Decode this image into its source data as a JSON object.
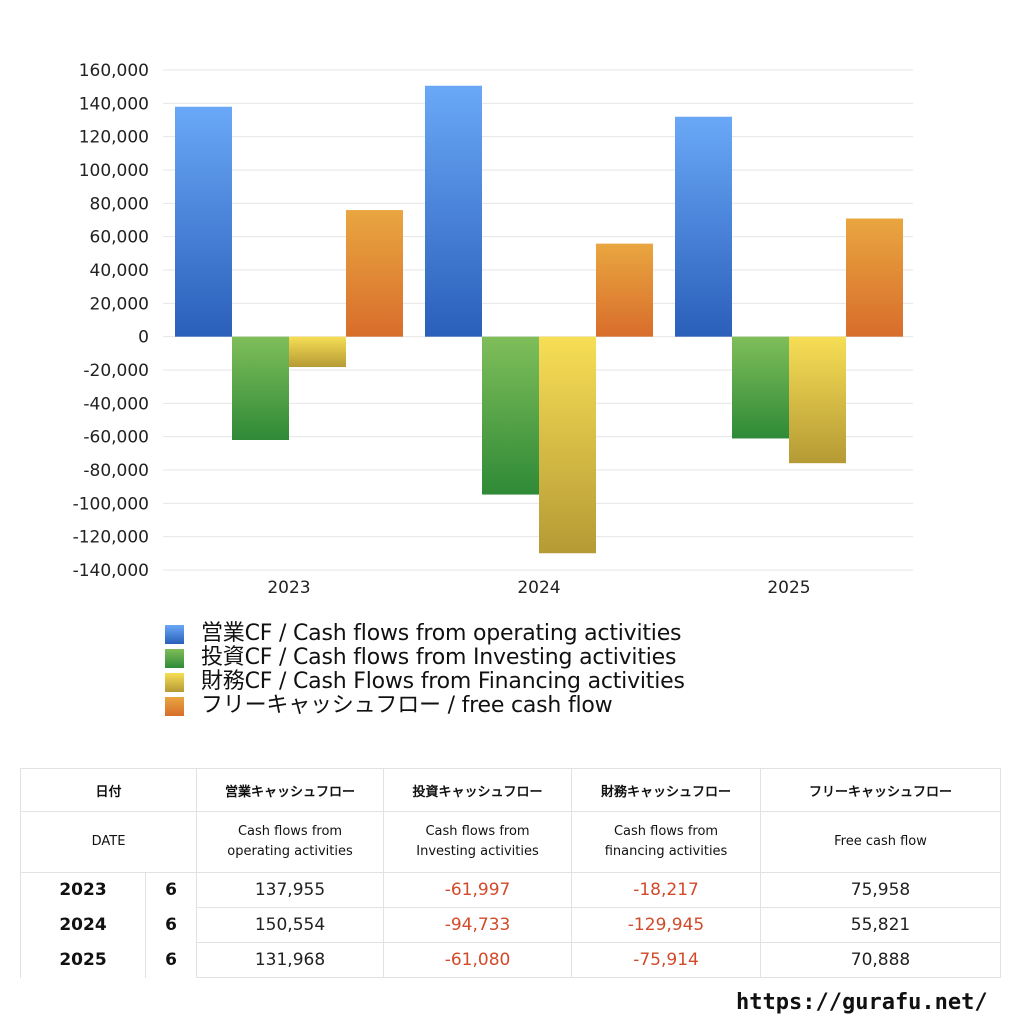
{
  "chart_data": {
    "type": "bar",
    "categories": [
      "2023",
      "2024",
      "2025"
    ],
    "ylim": [
      -140000,
      160000
    ],
    "yticks": [
      160000,
      140000,
      120000,
      100000,
      80000,
      60000,
      40000,
      20000,
      0,
      -20000,
      -40000,
      -60000,
      -80000,
      -100000,
      -120000,
      -140000
    ],
    "ytick_labels": [
      "160,000",
      "140,000",
      "120,000",
      "100,000",
      "80,000",
      "60,000",
      "40,000",
      "20,000",
      "0",
      "-20,000",
      "-40,000",
      "-60,000",
      "-80,000",
      "-100,000",
      "-120,000",
      "-140,000"
    ],
    "grid": true,
    "legend_position": "bottom",
    "series": [
      {
        "name": "営業CF / Cash flows from operating activities",
        "values": [
          137955,
          150554,
          131968
        ],
        "color_top": "#6aa8f7",
        "color_bottom": "#2a5fba"
      },
      {
        "name": "投資CF / Cash flows from Investing activities",
        "values": [
          -61997,
          -94733,
          -61080
        ],
        "color_top": "#7fbe5a",
        "color_bottom": "#2f8a37"
      },
      {
        "name": "財務CF / Cash Flows from Financing activities",
        "values": [
          -18217,
          -129945,
          -75914
        ],
        "color_top": "#f7de55",
        "color_bottom": "#b59a35"
      },
      {
        "name": "フリーキャッシュフロー / free cash flow",
        "values": [
          75958,
          55821,
          70888
        ],
        "color_top": "#e9a640",
        "color_bottom": "#d86d2b"
      }
    ]
  },
  "table": {
    "header": {
      "date": "日付",
      "operating": "営業キャッシュフロー",
      "investing": "投資キャッシュフロー",
      "financing": "財務キャッシュフロー",
      "free": "フリーキャッシュフロー"
    },
    "subheader": {
      "date": "DATE",
      "operating_1": "Cash flows from",
      "operating_2": "operating activities",
      "investing_1": "Cash flows from",
      "investing_2": "Investing activities",
      "financing_1": "Cash flows from",
      "financing_2": "financing activities",
      "free": "Free cash flow"
    },
    "rows": [
      {
        "year": "2023",
        "month": "6",
        "operating": "137,955",
        "investing": "-61,997",
        "financing": "-18,217",
        "free": "75,958"
      },
      {
        "year": "2024",
        "month": "6",
        "operating": "150,554",
        "investing": "-94,733",
        "financing": "-129,945",
        "free": "55,821"
      },
      {
        "year": "2025",
        "month": "6",
        "operating": "131,968",
        "investing": "-61,080",
        "financing": "-75,914",
        "free": "70,888"
      }
    ]
  },
  "footer": {
    "url": "https://gurafu.net/"
  }
}
